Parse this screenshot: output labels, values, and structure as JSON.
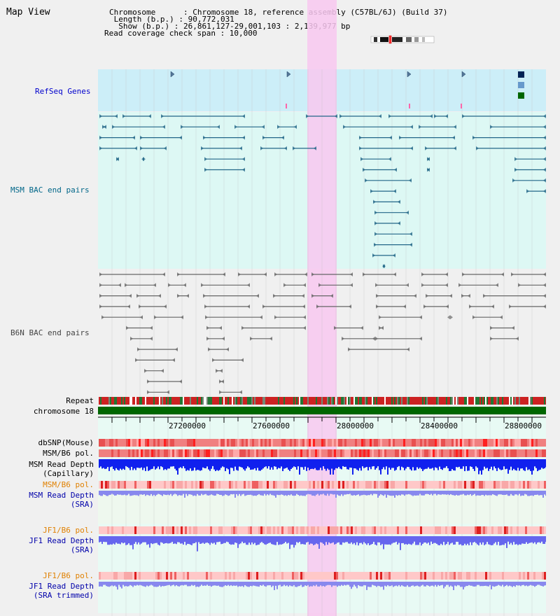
{
  "map_title": "Map View",
  "header": {
    "chromosome": "Chromosome      : Chromosome 18, reference assembly (C57BL/6J) (Build 37)",
    "length": " Length (b.p.) : 90,772,031",
    "show": "  Show (b.p.) : 26,861,127-29,001,103 : 2,139,977 bp",
    "coverage": "Read coverage check span : 10,000"
  },
  "tracks": {
    "refseq": "RefSeq Genes",
    "msm_bac": "MSM BAC end pairs",
    "b6n_bac": "B6N BAC end pairs",
    "repeat": "Repeat",
    "chromosome": "chromosome 18",
    "dbsnp": "dbSNP(Mouse)",
    "msm_b6_pol_1": "MSM/B6 pol.",
    "msm_read_depth_cap_1": "MSM Read Depth",
    "msm_read_depth_cap_2": "(Capillary)",
    "msm_b6_pol_2": "MSM/B6 pol.",
    "msm_read_depth_sra_1": "MSM Read Depth",
    "msm_read_depth_sra_2": "(SRA)",
    "jf1_b6_pol_1": "JF1/B6 pol.",
    "jf1_read_depth_sra_1": "JF1 Read Depth",
    "jf1_read_depth_sra_2": "(SRA)",
    "jf1_b6_pol_2": "JF1/B6 pol.",
    "jf1_read_depth_trim_1": "JF1 Read Depth",
    "jf1_read_depth_trim_2": "(SRA trimmed)"
  },
  "axis_ticks": [
    "27200000",
    "27600000",
    "28000000",
    "28400000",
    "28800000"
  ],
  "colors": {
    "refseq_label": "#0000cc",
    "msm_label": "#006688",
    "b6n_label": "#444444",
    "pol_orange": "#e08000",
    "sra_blue": "#0000aa",
    "highlight": "#f8c8f0",
    "chromosome_bar": "#006600"
  }
}
